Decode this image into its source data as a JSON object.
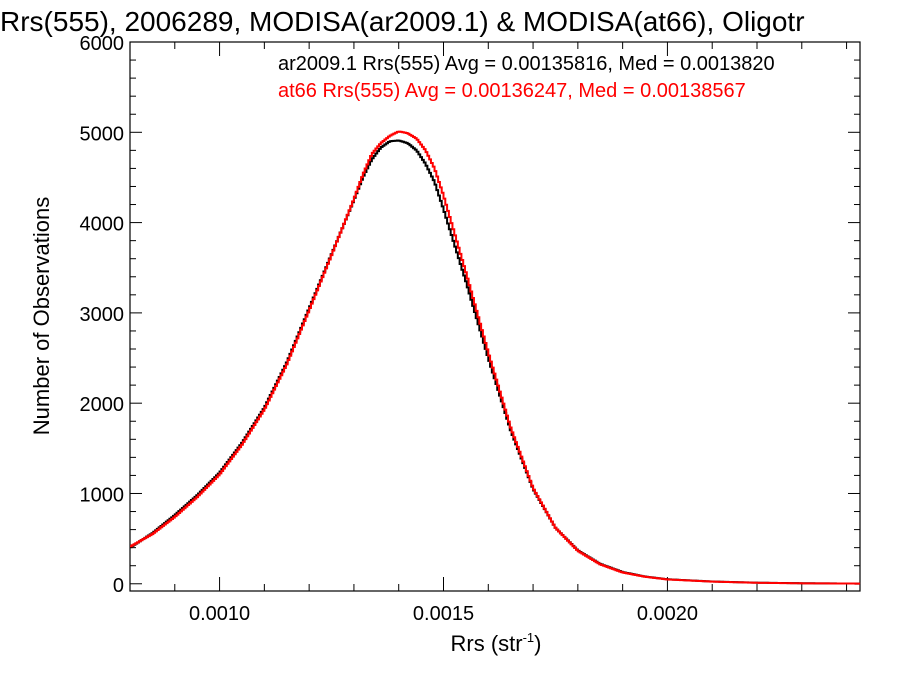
{
  "chart_data": {
    "type": "line",
    "title": "Rrs(555), 2006289, MODISA(ar2009.1) & MODISA(at66), Oligotr",
    "xlabel": "Rrs (str",
    "xlabel_sup": "-1",
    "xlabel_close": ")",
    "ylabel": "Number of Observations",
    "xlim": [
      0.0008,
      0.00243
    ],
    "ylim": [
      -80,
      6000
    ],
    "x_ticks": [
      0.001,
      0.0015,
      0.002
    ],
    "x_tick_labels": [
      "0.0010",
      "0.0015",
      "0.0020"
    ],
    "y_ticks": [
      0,
      1000,
      2000,
      3000,
      4000,
      5000,
      6000
    ],
    "y_tick_labels": [
      "0",
      "1000",
      "2000",
      "3000",
      "4000",
      "5000",
      "6000"
    ],
    "grid": false,
    "legend_placement": "top-right",
    "legend": [
      {
        "text": "ar2009.1 Rrs(555) Avg = 0.00135816, Med = 0.0013820",
        "color": "#000000"
      },
      {
        "text": "at66 Rrs(555) Avg = 0.00136247, Med = 0.00138567",
        "color": "#ff0000"
      }
    ],
    "x": [
      0.0008,
      0.00085,
      0.0009,
      0.00095,
      0.001,
      0.00105,
      0.0011,
      0.00115,
      0.0012,
      0.00125,
      0.0013,
      0.00132,
      0.00134,
      0.00136,
      0.00138,
      0.0014,
      0.00142,
      0.00144,
      0.00146,
      0.00148,
      0.0015,
      0.00155,
      0.0016,
      0.00165,
      0.0017,
      0.00175,
      0.0018,
      0.00185,
      0.0019,
      0.00195,
      0.002,
      0.0021,
      0.0022,
      0.0023,
      0.0024,
      0.00243
    ],
    "series": [
      {
        "name": "ar2009.1",
        "color": "#000000",
        "values": [
          400,
          560,
          760,
          980,
          1230,
          1560,
          1950,
          2450,
          3050,
          3650,
          4250,
          4500,
          4700,
          4830,
          4900,
          4910,
          4880,
          4800,
          4650,
          4450,
          4150,
          3350,
          2500,
          1700,
          1050,
          620,
          370,
          220,
          130,
          80,
          50,
          25,
          12,
          6,
          3,
          2
        ]
      },
      {
        "name": "at66",
        "color": "#ff0000",
        "values": [
          410,
          550,
          740,
          960,
          1210,
          1540,
          1930,
          2430,
          3030,
          3640,
          4260,
          4530,
          4760,
          4880,
          4960,
          5010,
          4990,
          4930,
          4800,
          4600,
          4300,
          3450,
          2560,
          1730,
          1060,
          620,
          365,
          215,
          125,
          78,
          48,
          24,
          11,
          5,
          3,
          2
        ]
      }
    ]
  }
}
